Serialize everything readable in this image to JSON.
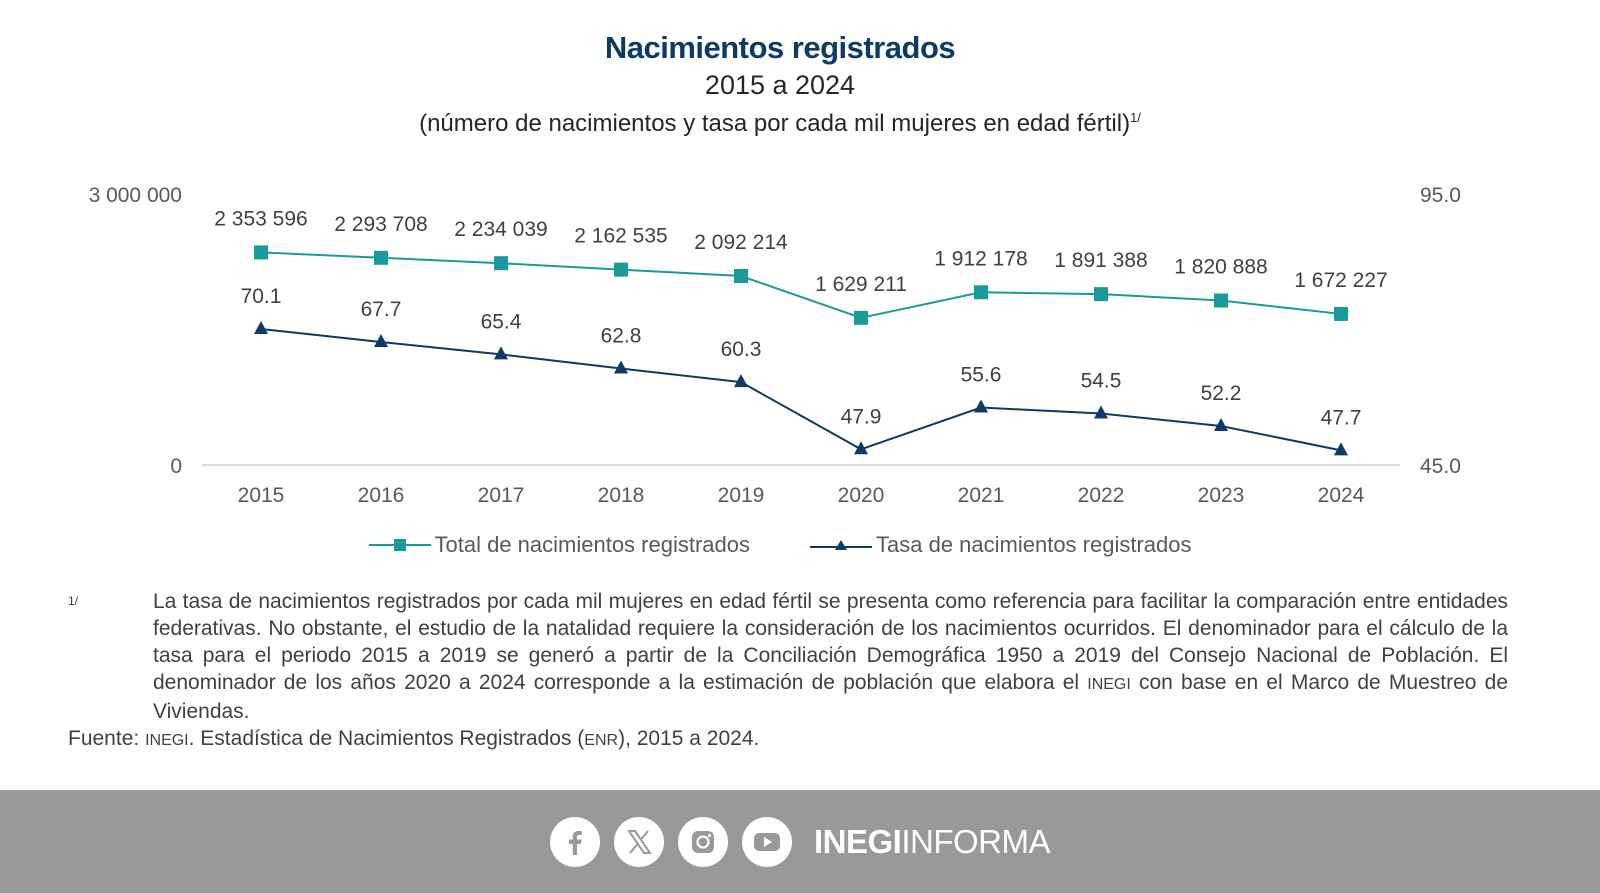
{
  "header": {
    "title": "Nacimientos registrados",
    "subtitle": "2015 a 2024",
    "units": "(número de nacimientos y tasa por cada mil mujeres en edad fértil)",
    "units_note_mark": "1/"
  },
  "chart_data": {
    "type": "line",
    "title": "Nacimientos registrados",
    "subtitle": "2015 a 2024",
    "categories": [
      "2015",
      "2016",
      "2017",
      "2018",
      "2019",
      "2020",
      "2021",
      "2022",
      "2023",
      "2024"
    ],
    "x": [
      "2015",
      "2016",
      "2017",
      "2018",
      "2019",
      "2020",
      "2021",
      "2022",
      "2023",
      "2024"
    ],
    "series": [
      {
        "name": "Total de nacimientos registrados",
        "axis": "left",
        "color": "#1a9a9a",
        "marker": "square",
        "values": [
          2353596,
          2293708,
          2234039,
          2162535,
          2092214,
          1629211,
          1912178,
          1891388,
          1820888,
          1672227
        ],
        "labels": [
          "2 353 596",
          "2 293 708",
          "2 234 039",
          "2 162 535",
          "2 092 214",
          "1 629 211",
          "1 912 178",
          "1 891 388",
          "1 820 888",
          "1 672 227"
        ]
      },
      {
        "name": "Tasa de nacimientos registrados",
        "axis": "right",
        "color": "#0d3a66",
        "marker": "triangle",
        "values": [
          70.1,
          67.7,
          65.4,
          62.8,
          60.3,
          47.9,
          55.6,
          54.5,
          52.2,
          47.7
        ],
        "labels": [
          "70.1",
          "67.7",
          "65.4",
          "62.8",
          "60.3",
          "47.9",
          "55.6",
          "54.5",
          "52.2",
          "47.7"
        ]
      }
    ],
    "y_left": {
      "ylim": [
        0,
        3000000
      ],
      "ticks": [
        "0",
        "3 000 000"
      ]
    },
    "y_right": {
      "ylim": [
        45.0,
        95.0
      ],
      "ticks": [
        "45.0",
        "95.0"
      ]
    },
    "xlabel": "",
    "ylabel": "",
    "grid": false,
    "legend": "bottom-center"
  },
  "footnote": {
    "mark": "1/",
    "text_parts": [
      "La tasa de nacimientos registrados por cada mil mujeres en edad fértil se presenta como referencia para facilitar la comparación entre entidades federativas. No obstante, el estudio de la natalidad requiere la consideración de los nacimientos ocurridos. El denominador para el cálculo de la tasa para el periodo 2015 a 2019 se generó a partir de la Conciliación Demográfica 1950 a 2019 del Consejo Nacional de Población. El denominador de los años 2020 a 2024 corresponde a la estimación de población que elabora el ",
      "INEGI",
      " con base en el Marco de Muestreo de Viviendas."
    ]
  },
  "source": {
    "prefix": "Fuente: ",
    "org": "INEGI",
    "middle": ". Estadística de Nacimientos Registrados (",
    "abbr": "ENR",
    "suffix": "), 2015 a 2024."
  },
  "footer": {
    "social": [
      "facebook-icon",
      "x-icon",
      "instagram-icon",
      "youtube-icon"
    ],
    "brand_bold": "INEGI",
    "brand_light": "INFORMA",
    "background": "#999999"
  }
}
